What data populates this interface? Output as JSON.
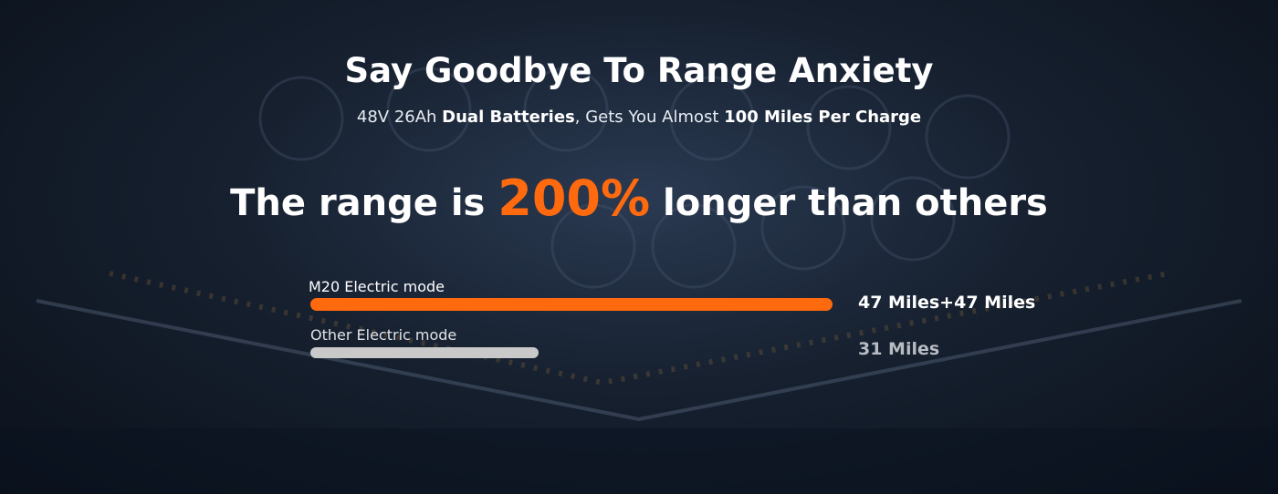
{
  "header": {
    "title": "Say Goodbye To Range Anxiety",
    "subtitle": [
      "48V 26Ah ",
      "Dual Batteries",
      ", Gets You Almost ",
      "100 Miles Per Charge"
    ]
  },
  "headline": [
    "The range is ",
    "200%",
    " longer than others"
  ],
  "comparison": [
    {
      "label": "M20 Electric mode",
      "value": "47 Miles+47 Miles"
    },
    {
      "label": "Other Electric mode",
      "value": "31 Miles"
    }
  ]
}
